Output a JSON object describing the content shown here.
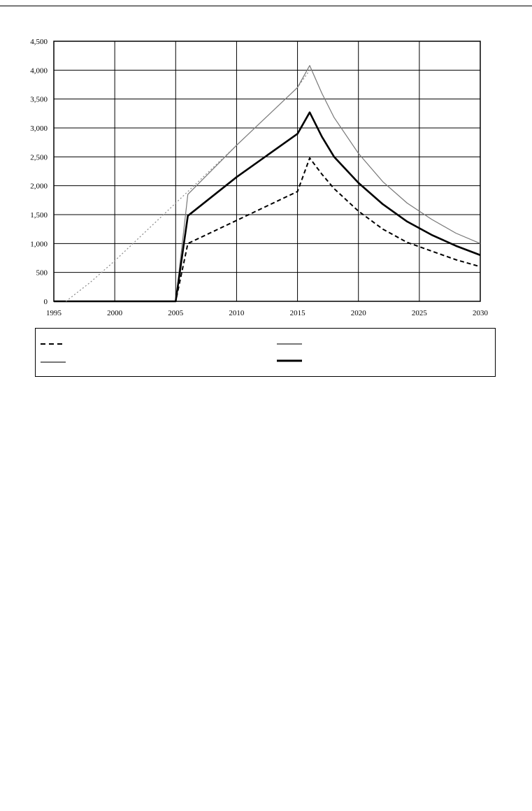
{
  "chart_data": {
    "type": "line",
    "title": "",
    "xlabel": "",
    "ylabel": "",
    "xlim": [
      1995,
      2030
    ],
    "ylim": [
      0,
      4500
    ],
    "x_ticks": [
      "1995",
      "2000",
      "2005",
      "2010",
      "2015",
      "2020",
      "2025",
      "2030"
    ],
    "y_ticks": [
      "0",
      "500",
      "1,000",
      "1,500",
      "2,000",
      "2,500",
      "3,000",
      "3,500",
      "4,000",
      "4,500"
    ],
    "x_tick_values": [
      1995,
      2000,
      2005,
      2010,
      2015,
      2020,
      2025,
      2030
    ],
    "y_tick_values": [
      0,
      500,
      1000,
      1500,
      2000,
      2500,
      3000,
      3500,
      4000,
      4500
    ],
    "grid": true,
    "legend_position": "bottom",
    "series": [
      {
        "style": "dashed-black",
        "color": "#000000",
        "points": [
          [
            1995,
            0
          ],
          [
            2005,
            0
          ],
          [
            2006,
            1000
          ],
          [
            2010,
            1400
          ],
          [
            2015,
            1900
          ],
          [
            2016,
            2480
          ],
          [
            2017,
            2200
          ],
          [
            2018,
            1950
          ],
          [
            2020,
            1560
          ],
          [
            2022,
            1250
          ],
          [
            2024,
            1020
          ],
          [
            2026,
            870
          ],
          [
            2028,
            720
          ],
          [
            2030,
            600
          ]
        ]
      },
      {
        "style": "thin-solid-gray",
        "color": "#777777",
        "points": [
          [
            1995,
            0
          ],
          [
            2005,
            0
          ],
          [
            2006,
            1850
          ],
          [
            2010,
            2700
          ],
          [
            2015,
            3700
          ],
          [
            2016,
            4080
          ],
          [
            2017,
            3600
          ],
          [
            2018,
            3180
          ],
          [
            2020,
            2560
          ],
          [
            2022,
            2070
          ],
          [
            2024,
            1700
          ],
          [
            2026,
            1420
          ],
          [
            2028,
            1180
          ],
          [
            2030,
            1000
          ]
        ]
      },
      {
        "style": "thick-solid-black",
        "color": "#000000",
        "points": [
          [
            1995,
            0
          ],
          [
            2005,
            0
          ],
          [
            2006,
            1480
          ],
          [
            2010,
            2150
          ],
          [
            2015,
            2900
          ],
          [
            2016,
            3270
          ],
          [
            2017,
            2850
          ],
          [
            2018,
            2500
          ],
          [
            2020,
            2050
          ],
          [
            2022,
            1680
          ],
          [
            2024,
            1380
          ],
          [
            2026,
            1150
          ],
          [
            2028,
            960
          ],
          [
            2030,
            800
          ]
        ]
      },
      {
        "style": "dotted-gray",
        "color": "#888888",
        "points": [
          [
            1996,
            0
          ],
          [
            1998,
            330
          ],
          [
            2000,
            700
          ],
          [
            2005,
            1700
          ],
          [
            2010,
            2700
          ],
          [
            2015,
            3700
          ],
          [
            2016,
            4000
          ]
        ]
      }
    ],
    "legend": [
      {
        "style": "dashed-black",
        "label": ""
      },
      {
        "style": "thin-solid-gray",
        "label": ""
      },
      {
        "style": "thin-solid-gray",
        "label": ""
      },
      {
        "style": "thick-solid-black",
        "label": ""
      }
    ]
  }
}
